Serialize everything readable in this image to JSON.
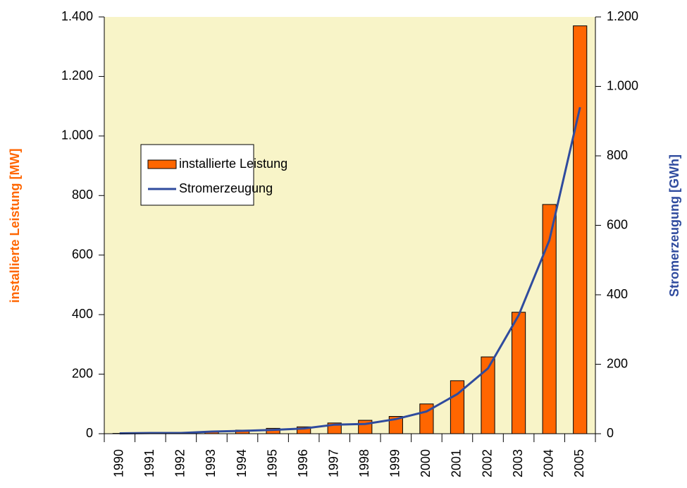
{
  "chart_data": {
    "type": "bar_line",
    "y_label": "installierte Leistung [MW]",
    "y2_label": "Stromerzeugung [GWh]",
    "categories": [
      "1990",
      "1991",
      "1992",
      "1993",
      "1994",
      "1995",
      "1996",
      "1997",
      "1998",
      "1999",
      "2000",
      "2001",
      "2002",
      "2003",
      "2004",
      "2005"
    ],
    "series": [
      {
        "name": "installierte Leistung",
        "color": "#ff6600",
        "type": "bar",
        "values": [
          1,
          2,
          3,
          8,
          12,
          18,
          23,
          36,
          45,
          58,
          100,
          178,
          258,
          408,
          770,
          1370
        ]
      },
      {
        "name": "Stromerzeugung",
        "color": "#2f4b9e",
        "type": "line",
        "axis": "y2",
        "values": [
          1,
          2,
          2,
          6,
          8,
          11,
          15,
          26,
          28,
          42,
          64,
          114,
          188,
          341,
          557,
          940
        ]
      }
    ],
    "ylim": [
      0,
      1400
    ],
    "yticks": [
      0,
      200,
      400,
      600,
      800,
      {
        "value": 1000,
        "label": "1.000"
      },
      {
        "value": 1200,
        "label": "1.200"
      },
      {
        "value": 1400,
        "label": "1.400"
      }
    ],
    "y2lim": [
      0,
      1200
    ],
    "y2ticks": [
      0,
      200,
      400,
      600,
      800,
      {
        "value": 1000,
        "label": "1.000"
      },
      {
        "value": 1200,
        "label": "1.200"
      }
    ],
    "plot_background": "#f8f4c8",
    "y_label_color": "#ff6600",
    "y2_label_color": "#2f4b9e",
    "legend": "upper left"
  }
}
